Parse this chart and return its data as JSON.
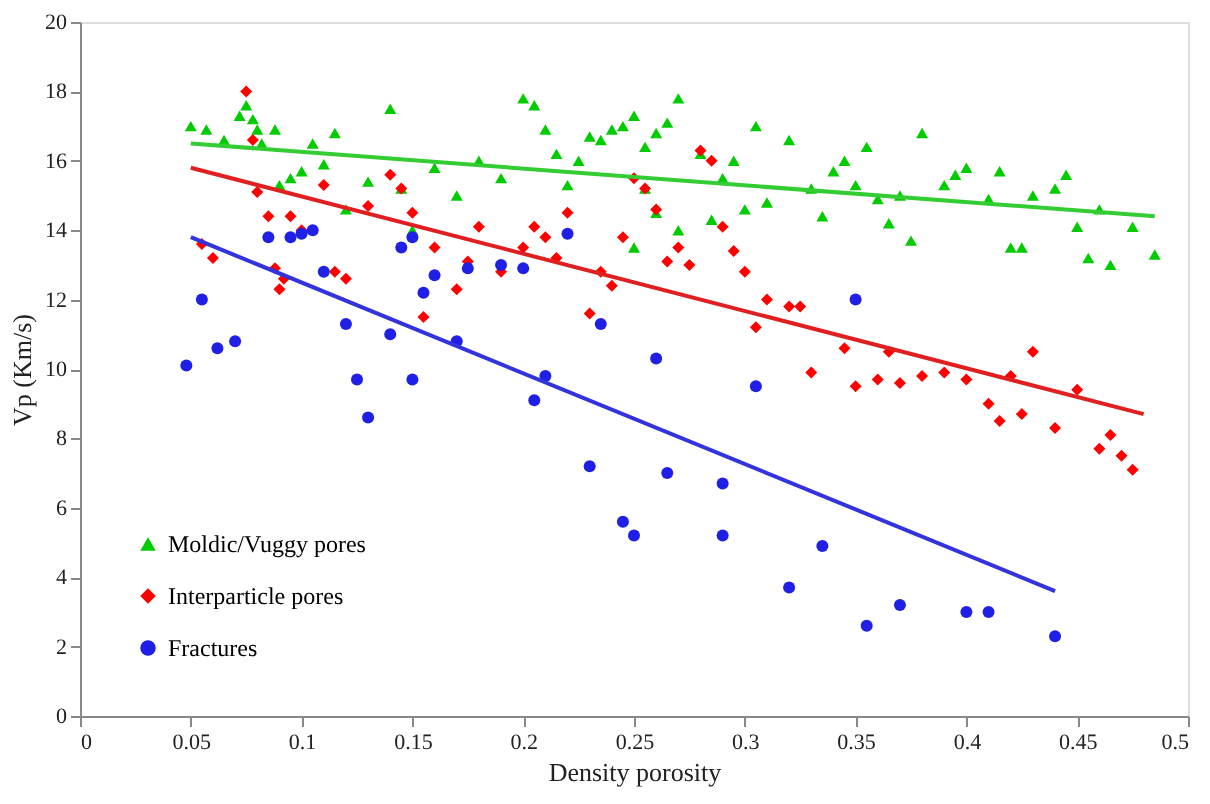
{
  "chart_data": {
    "type": "scatter",
    "xlabel": "Density porosity",
    "ylabel": "Vp (Km/s)",
    "xlim": [
      0,
      0.5
    ],
    "ylim": [
      0,
      20
    ],
    "xticks": [
      0,
      0.05,
      0.1,
      0.15,
      0.2,
      0.25,
      0.3,
      0.35,
      0.4,
      0.45,
      0.5
    ],
    "yticks": [
      0,
      2,
      4,
      6,
      8,
      10,
      12,
      14,
      16,
      18,
      20
    ],
    "grid": false,
    "legend": "bottom left",
    "series": [
      {
        "name": "Moldic/Vuggy pores",
        "color": "#00cc00",
        "marker": "triangle",
        "x": [
          0.05,
          0.057,
          0.065,
          0.072,
          0.075,
          0.078,
          0.08,
          0.082,
          0.088,
          0.09,
          0.095,
          0.1,
          0.105,
          0.11,
          0.115,
          0.12,
          0.13,
          0.14,
          0.145,
          0.15,
          0.16,
          0.17,
          0.18,
          0.19,
          0.2,
          0.205,
          0.21,
          0.215,
          0.22,
          0.225,
          0.23,
          0.235,
          0.24,
          0.245,
          0.25,
          0.255,
          0.26,
          0.265,
          0.27,
          0.255,
          0.26,
          0.25,
          0.27,
          0.28,
          0.285,
          0.29,
          0.295,
          0.3,
          0.305,
          0.31,
          0.32,
          0.33,
          0.335,
          0.34,
          0.345,
          0.35,
          0.355,
          0.36,
          0.365,
          0.37,
          0.375,
          0.38,
          0.39,
          0.395,
          0.4,
          0.41,
          0.415,
          0.42,
          0.425,
          0.43,
          0.44,
          0.445,
          0.45,
          0.455,
          0.46,
          0.465,
          0.475,
          0.485
        ],
        "values": [
          17.0,
          16.9,
          16.6,
          17.3,
          17.6,
          17.2,
          16.9,
          16.5,
          16.9,
          15.3,
          15.5,
          15.7,
          16.5,
          15.9,
          16.8,
          14.6,
          15.4,
          17.5,
          15.2,
          14.0,
          15.8,
          15.0,
          16.0,
          15.5,
          17.8,
          17.6,
          16.9,
          16.2,
          15.3,
          16.0,
          16.7,
          16.6,
          16.9,
          17.0,
          17.3,
          16.4,
          16.8,
          17.1,
          17.8,
          15.2,
          14.5,
          13.5,
          14.0,
          16.2,
          14.3,
          15.5,
          16.0,
          14.6,
          17.0,
          14.8,
          16.6,
          15.2,
          14.4,
          15.7,
          16.0,
          15.3,
          16.4,
          14.9,
          14.2,
          15.0,
          13.7,
          16.8,
          15.3,
          15.6,
          15.8,
          14.9,
          15.7,
          13.5,
          13.5,
          15.0,
          15.2,
          15.6,
          14.1,
          13.2,
          14.6,
          13.0,
          14.1,
          13.3
        ]
      },
      {
        "name": "Interparticle pores",
        "color": "#ff0000",
        "marker": "diamond",
        "x": [
          0.055,
          0.06,
          0.075,
          0.078,
          0.08,
          0.085,
          0.088,
          0.09,
          0.092,
          0.095,
          0.1,
          0.11,
          0.115,
          0.12,
          0.13,
          0.14,
          0.145,
          0.15,
          0.155,
          0.16,
          0.17,
          0.175,
          0.18,
          0.19,
          0.2,
          0.205,
          0.21,
          0.215,
          0.22,
          0.23,
          0.235,
          0.24,
          0.245,
          0.25,
          0.255,
          0.26,
          0.265,
          0.27,
          0.275,
          0.28,
          0.285,
          0.29,
          0.295,
          0.3,
          0.305,
          0.31,
          0.32,
          0.325,
          0.33,
          0.345,
          0.35,
          0.36,
          0.365,
          0.37,
          0.38,
          0.39,
          0.4,
          0.41,
          0.415,
          0.42,
          0.425,
          0.43,
          0.44,
          0.45,
          0.46,
          0.465,
          0.47,
          0.475
        ],
        "values": [
          13.6,
          13.2,
          18.0,
          16.6,
          15.1,
          14.4,
          12.9,
          12.3,
          12.6,
          14.4,
          14.0,
          15.3,
          12.8,
          12.6,
          14.7,
          15.6,
          15.2,
          14.5,
          11.5,
          13.5,
          12.3,
          13.1,
          14.1,
          12.8,
          13.5,
          14.1,
          13.8,
          13.2,
          14.5,
          11.6,
          12.8,
          12.4,
          13.8,
          15.5,
          15.2,
          14.6,
          13.1,
          13.5,
          13.0,
          16.3,
          16.0,
          14.1,
          13.4,
          12.8,
          11.2,
          12.0,
          11.8,
          11.8,
          9.9,
          10.6,
          9.5,
          9.7,
          10.5,
          9.6,
          9.8,
          9.9,
          9.7,
          9.0,
          8.5,
          9.8,
          8.7,
          10.5,
          8.3,
          9.4,
          7.7,
          8.1,
          7.5,
          7.1
        ]
      },
      {
        "name": "Fractures",
        "color": "#1f1fe6",
        "marker": "circle",
        "x": [
          0.048,
          0.055,
          0.062,
          0.07,
          0.085,
          0.095,
          0.1,
          0.105,
          0.11,
          0.12,
          0.125,
          0.13,
          0.14,
          0.145,
          0.15,
          0.15,
          0.155,
          0.16,
          0.17,
          0.175,
          0.19,
          0.2,
          0.205,
          0.21,
          0.22,
          0.23,
          0.235,
          0.245,
          0.25,
          0.26,
          0.265,
          0.29,
          0.29,
          0.305,
          0.32,
          0.335,
          0.35,
          0.355,
          0.37,
          0.4,
          0.41,
          0.44
        ],
        "values": [
          10.1,
          12.0,
          10.6,
          10.8,
          13.8,
          13.8,
          13.9,
          14.0,
          12.8,
          11.3,
          9.7,
          8.6,
          11.0,
          13.5,
          9.7,
          13.8,
          12.2,
          12.7,
          10.8,
          12.9,
          13.0,
          12.9,
          9.1,
          9.8,
          13.9,
          7.2,
          11.3,
          5.6,
          5.2,
          10.3,
          7.0,
          5.2,
          6.7,
          9.5,
          3.7,
          4.9,
          12.0,
          2.6,
          3.2,
          3.0,
          3.0,
          2.3
        ]
      },
      {
        "type": "line",
        "color": "#33cc33",
        "x": [
          0.05,
          0.485
        ],
        "values": [
          16.5,
          14.4
        ]
      },
      {
        "type": "line",
        "color": "#e02020",
        "x": [
          0.05,
          0.48
        ],
        "values": [
          15.8,
          8.7
        ]
      },
      {
        "type": "line",
        "color": "#3333dd",
        "x": [
          0.05,
          0.44
        ],
        "values": [
          13.8,
          3.6
        ]
      }
    ]
  }
}
